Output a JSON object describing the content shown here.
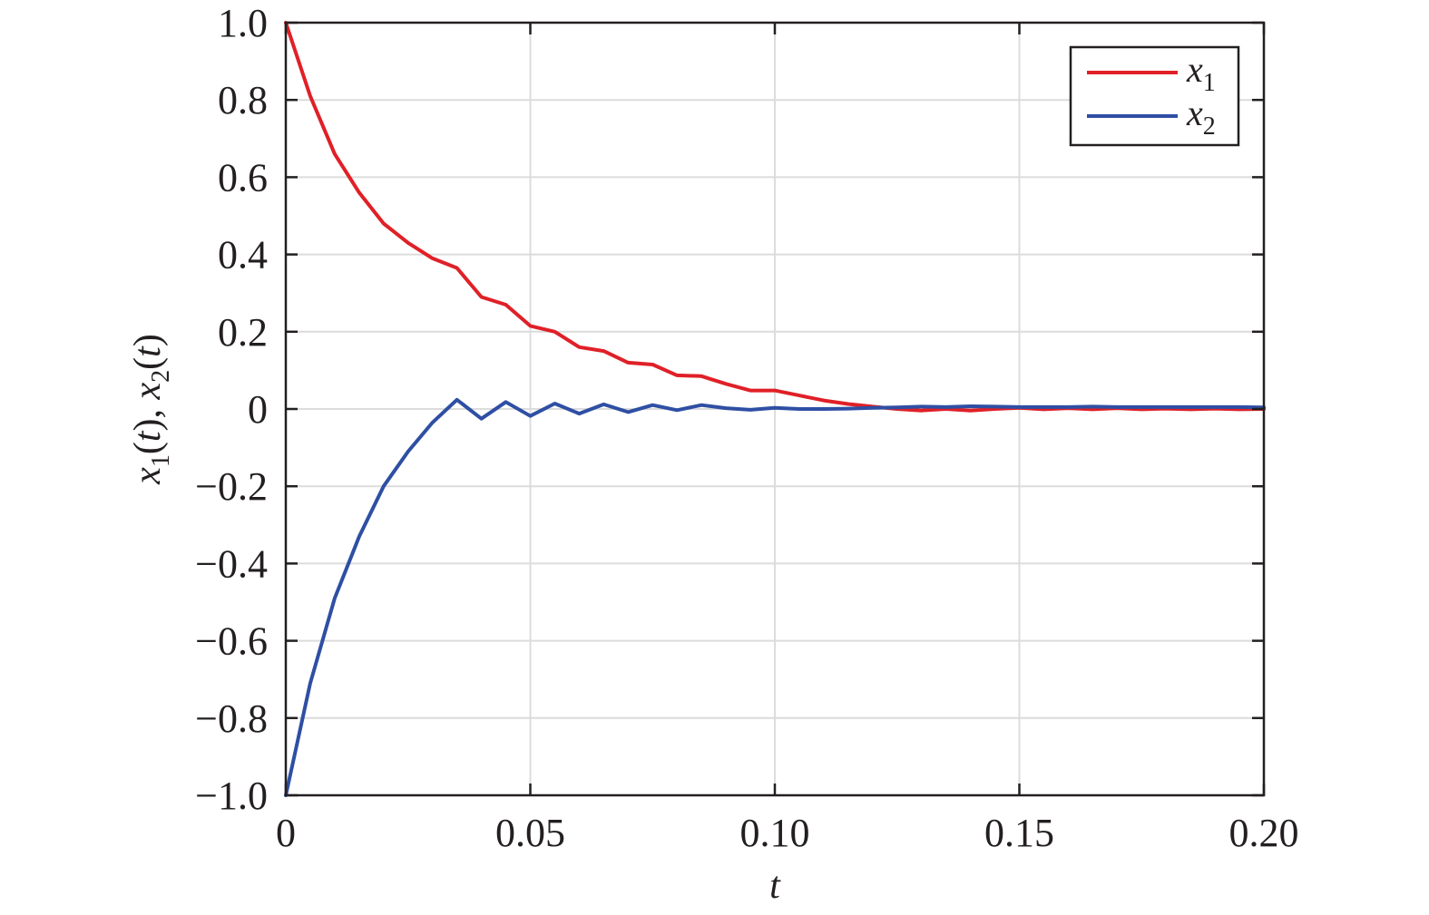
{
  "chart_data": {
    "type": "line",
    "xlabel": "t",
    "ylabel": {
      "text": "x1(t), x2(t)",
      "parts": [
        {
          "text": "x",
          "style": "italic"
        },
        {
          "text": "1",
          "style": "sub"
        },
        {
          "text": "(",
          "style": "normal"
        },
        {
          "text": "t",
          "style": "italic"
        },
        {
          "text": "), ",
          "style": "normal"
        },
        {
          "text": "x",
          "style": "italic"
        },
        {
          "text": "2",
          "style": "sub"
        },
        {
          "text": "(",
          "style": "normal"
        },
        {
          "text": "t",
          "style": "italic"
        },
        {
          "text": ")",
          "style": "normal"
        }
      ]
    },
    "xlim": [
      0,
      0.2
    ],
    "ylim": [
      -1.0,
      1.0
    ],
    "grid": true,
    "legend_position": "top-right",
    "x_ticks": [
      {
        "value": 0,
        "label": "0"
      },
      {
        "value": 0.05,
        "label": "0.05"
      },
      {
        "value": 0.1,
        "label": "0.10"
      },
      {
        "value": 0.15,
        "label": "0.15"
      },
      {
        "value": 0.2,
        "label": "0.20"
      }
    ],
    "y_ticks": [
      {
        "value": 1.0,
        "label": "1.0"
      },
      {
        "value": 0.8,
        "label": "0.8"
      },
      {
        "value": 0.6,
        "label": "0.6"
      },
      {
        "value": 0.4,
        "label": "0.4"
      },
      {
        "value": 0.2,
        "label": "0.2"
      },
      {
        "value": 0,
        "label": "0"
      },
      {
        "value": -0.2,
        "label": "−0.2"
      },
      {
        "value": -0.4,
        "label": "−0.4"
      },
      {
        "value": -0.6,
        "label": "−0.6"
      },
      {
        "value": -0.8,
        "label": "−0.8"
      },
      {
        "value": -1.0,
        "label": "−1.0"
      }
    ],
    "series": [
      {
        "name": "x1",
        "name_base": "x",
        "name_sub": "1",
        "color": "#e02027",
        "x": [
          0,
          0.005,
          0.01,
          0.015,
          0.02,
          0.025,
          0.03,
          0.035,
          0.04,
          0.045,
          0.05,
          0.055,
          0.06,
          0.065,
          0.07,
          0.075,
          0.08,
          0.085,
          0.09,
          0.095,
          0.1,
          0.105,
          0.11,
          0.115,
          0.12,
          0.125,
          0.13,
          0.135,
          0.14,
          0.145,
          0.15,
          0.155,
          0.16,
          0.165,
          0.17,
          0.175,
          0.18,
          0.185,
          0.19,
          0.195,
          0.2
        ],
        "y": [
          1.0,
          0.81,
          0.66,
          0.56,
          0.48,
          0.43,
          0.39,
          0.365,
          0.29,
          0.27,
          0.215,
          0.2,
          0.16,
          0.15,
          0.12,
          0.115,
          0.087,
          0.085,
          0.065,
          0.048,
          0.048,
          0.035,
          0.022,
          0.013,
          0.006,
          0.0,
          -0.004,
          0.0,
          -0.004,
          0.0,
          0.003,
          -0.001,
          0.002,
          -0.001,
          0.002,
          -0.001,
          0.001,
          -0.001,
          0.001,
          -0.001,
          0.0
        ]
      },
      {
        "name": "x2",
        "name_base": "x",
        "name_sub": "2",
        "color": "#2e4fa3",
        "x": [
          0,
          0.005,
          0.01,
          0.015,
          0.02,
          0.025,
          0.03,
          0.035,
          0.04,
          0.045,
          0.05,
          0.055,
          0.06,
          0.065,
          0.07,
          0.075,
          0.08,
          0.085,
          0.09,
          0.095,
          0.1,
          0.105,
          0.11,
          0.115,
          0.12,
          0.125,
          0.13,
          0.135,
          0.14,
          0.145,
          0.15,
          0.155,
          0.16,
          0.165,
          0.17,
          0.175,
          0.18,
          0.185,
          0.19,
          0.195,
          0.2
        ],
        "y": [
          -1.0,
          -0.71,
          -0.49,
          -0.33,
          -0.2,
          -0.11,
          -0.035,
          0.024,
          -0.025,
          0.018,
          -0.018,
          0.014,
          -0.012,
          0.012,
          -0.008,
          0.01,
          -0.003,
          0.01,
          0.002,
          -0.002,
          0.003,
          0.0,
          0.0,
          0.001,
          0.003,
          0.004,
          0.006,
          0.005,
          0.007,
          0.006,
          0.005,
          0.005,
          0.005,
          0.006,
          0.005,
          0.005,
          0.005,
          0.005,
          0.005,
          0.005,
          0.004
        ]
      }
    ]
  }
}
